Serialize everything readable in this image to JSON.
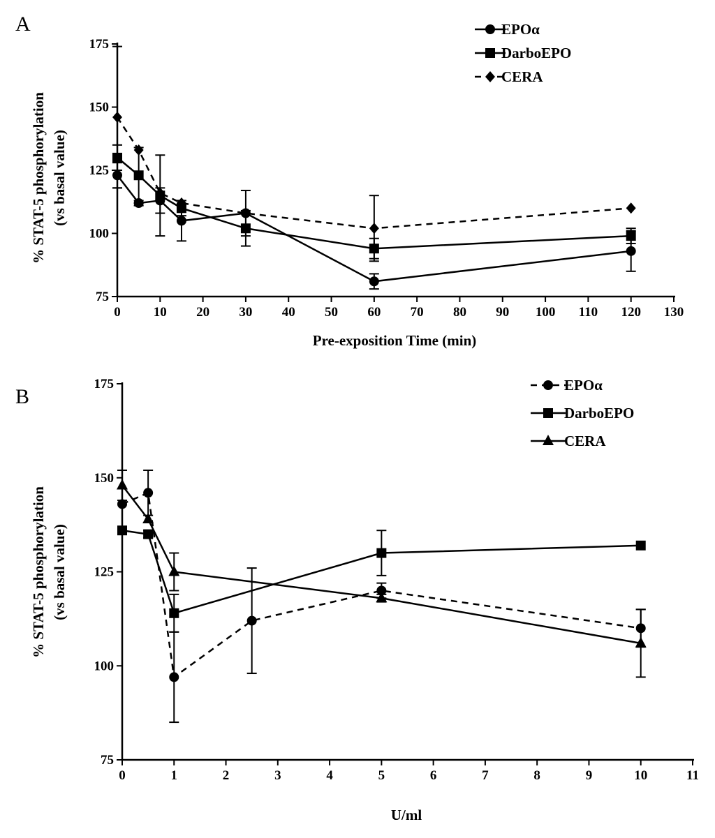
{
  "chart_data": [
    {
      "type": "line",
      "panel_label": "A",
      "xlabel": "Pre-exposition Time (min)",
      "ylabel": "% STAT-5 phosphorylation",
      "ylabel2": "(vs basal value)",
      "xlim": [
        0,
        130
      ],
      "ylim": [
        75,
        175
      ],
      "xticks": [
        0,
        10,
        20,
        30,
        40,
        50,
        60,
        70,
        80,
        90,
        100,
        110,
        120,
        130
      ],
      "yticks": [
        75,
        100,
        125,
        150,
        175
      ],
      "legend_position": "top-right",
      "series": [
        {
          "name": "EPOα",
          "marker": "circle",
          "dashed": false,
          "x": [
            0,
            5,
            10,
            15,
            30,
            60,
            120
          ],
          "y": [
            123,
            112,
            113,
            105,
            108,
            81,
            93
          ],
          "err": [
            5,
            1,
            5,
            8,
            9,
            3,
            8
          ]
        },
        {
          "name": "DarboEPO",
          "marker": "square",
          "dashed": false,
          "x": [
            0,
            5,
            10,
            15,
            30,
            60,
            120
          ],
          "y": [
            130,
            123,
            115,
            110,
            102,
            94,
            99
          ],
          "err": [
            5,
            11,
            16,
            3,
            7,
            4,
            3
          ]
        },
        {
          "name": "CERA",
          "marker": "diamond",
          "dashed": true,
          "x": [
            0,
            5,
            10,
            15,
            30,
            60,
            120
          ],
          "y": [
            146,
            133,
            116,
            112,
            108,
            102,
            110
          ],
          "err": [
            28,
            0,
            0,
            0,
            0,
            13,
            0
          ]
        }
      ]
    },
    {
      "type": "line",
      "panel_label": "B",
      "xlabel": "U/ml",
      "ylabel": "% STAT-5 phosphorylation",
      "ylabel2": "(vs basal value)",
      "xlim": [
        0,
        11
      ],
      "ylim": [
        75,
        175
      ],
      "xticks": [
        0,
        1,
        2,
        3,
        4,
        5,
        6,
        7,
        8,
        9,
        10,
        11
      ],
      "yticks": [
        75,
        100,
        125,
        150,
        175
      ],
      "legend_position": "top-right",
      "series": [
        {
          "name": "EPOα",
          "marker": "circle",
          "dashed": true,
          "x": [
            0,
            0.5,
            1,
            2.5,
            5,
            10
          ],
          "y": [
            143,
            146,
            97,
            112,
            120,
            110
          ],
          "err": [
            0,
            6,
            12,
            14,
            2,
            5
          ]
        },
        {
          "name": "DarboEPO",
          "marker": "square",
          "dashed": false,
          "x": [
            0,
            0.5,
            1,
            5,
            10
          ],
          "y": [
            136,
            135,
            114,
            130,
            132
          ],
          "err": [
            1,
            1,
            5,
            6,
            0
          ]
        },
        {
          "name": "CERA",
          "marker": "triangle",
          "dashed": false,
          "x": [
            0,
            0.5,
            1,
            5,
            10
          ],
          "y": [
            148,
            139,
            125,
            118,
            106
          ],
          "err": [
            4,
            0,
            5,
            1,
            9
          ]
        }
      ]
    }
  ]
}
